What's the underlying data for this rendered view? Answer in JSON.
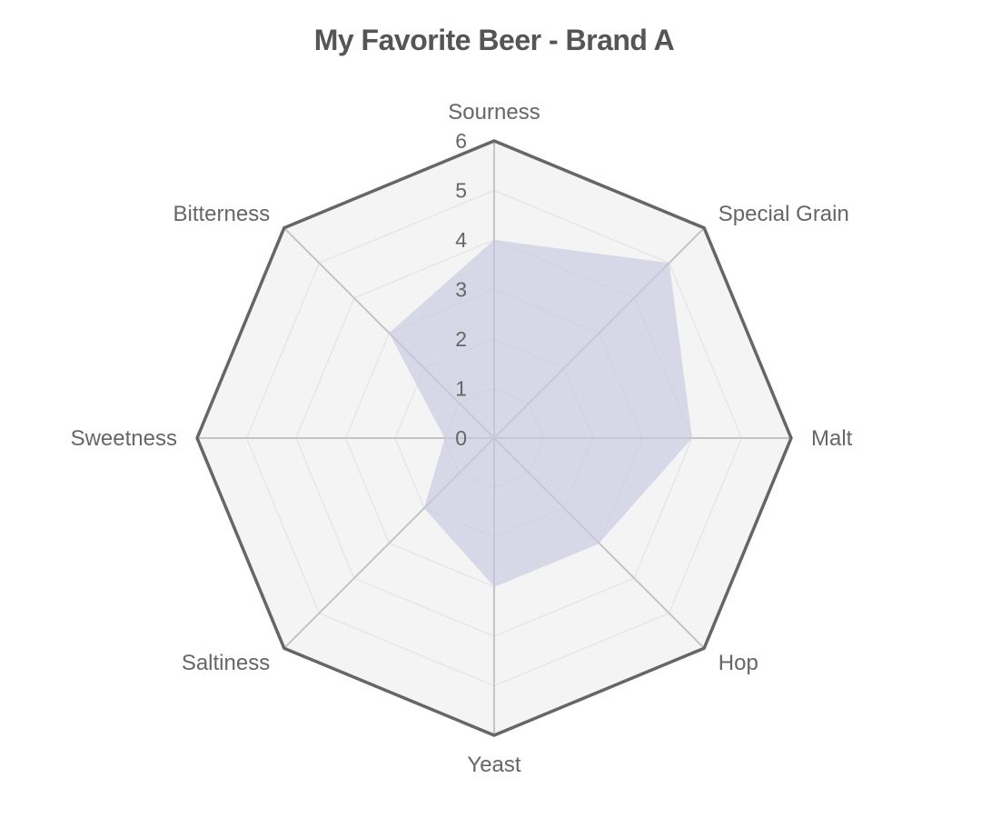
{
  "chart_data": {
    "type": "radar",
    "title": "My Favorite Beer - Brand A",
    "indicators": [
      "Sourness",
      "Special Grain",
      "Malt",
      "Hop",
      "Yeast",
      "Saltiness",
      "Sweetness",
      "Bitterness"
    ],
    "range": [
      0,
      6
    ],
    "ticks": [
      "0",
      "1",
      "2",
      "3",
      "4",
      "5",
      "6"
    ],
    "series": [
      {
        "values": [
          4,
          5,
          4,
          3,
          3,
          2,
          1,
          3
        ]
      }
    ],
    "grid": true,
    "colors": {
      "area": "#c8c9e1",
      "split_area": "#f4f4f4",
      "outer_line": "#666666",
      "axis_line": "#c4c4c4",
      "split_line": "#e6e6e6",
      "text": "#555555"
    }
  }
}
